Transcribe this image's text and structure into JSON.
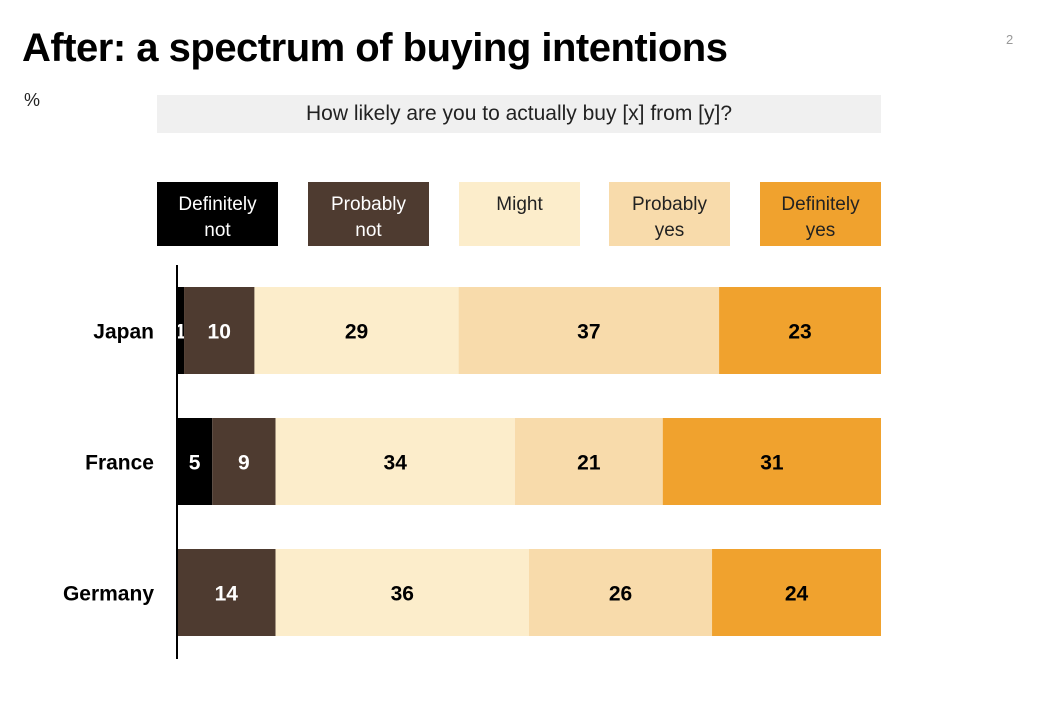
{
  "slide": {
    "title": "After: a spectrum of buying intentions",
    "unit": "%",
    "page_number": "2",
    "question": "How likely are you to actually buy [x] from [y]?"
  },
  "legend": [
    {
      "line1": "Definitely",
      "line2": "not",
      "color": "#000000",
      "text_color": "#ffffff"
    },
    {
      "line1": "Probably",
      "line2": "not",
      "color": "#4e3b30",
      "text_color": "#ffffff"
    },
    {
      "line1": "Might",
      "line2": "",
      "color": "#fcedcb",
      "text_color": "#222222"
    },
    {
      "line1": "Probably",
      "line2": "yes",
      "color": "#f8dbab",
      "text_color": "#222222"
    },
    {
      "line1": "Definitely",
      "line2": "yes",
      "color": "#f0a22e",
      "text_color": "#222222"
    }
  ],
  "chart_data": {
    "type": "bar",
    "orientation": "horizontal",
    "stacked": true,
    "categories": [
      "Japan",
      "France",
      "Germany"
    ],
    "series": [
      {
        "name": "Definitely not",
        "color": "#000000",
        "label_color": "#ffffff",
        "values": [
          1,
          5,
          0
        ]
      },
      {
        "name": "Probably not",
        "color": "#4e3b30",
        "label_color": "#ffffff",
        "values": [
          10,
          9,
          14
        ]
      },
      {
        "name": "Might",
        "color": "#fcedcb",
        "label_color": "#000000",
        "values": [
          29,
          34,
          36
        ]
      },
      {
        "name": "Probably yes",
        "color": "#f8dbab",
        "label_color": "#000000",
        "values": [
          37,
          21,
          26
        ]
      },
      {
        "name": "Definitely yes",
        "color": "#f0a22e",
        "label_color": "#000000",
        "values": [
          23,
          31,
          24
        ]
      }
    ],
    "xlim": [
      0,
      100
    ],
    "grid": false,
    "legend_position": "top"
  }
}
